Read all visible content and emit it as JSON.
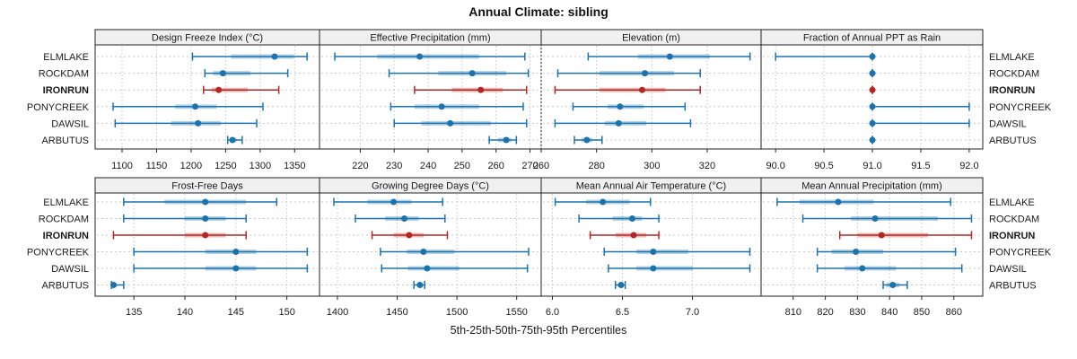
{
  "title": "Annual Climate: sibling",
  "caption": "5th-25th-50th-75th-95th Percentiles",
  "sites": [
    "ELMLAKE",
    "ROCKDAM",
    "IRONRUN",
    "PONYCREEK",
    "DAWSIL",
    "ARBUTUS"
  ],
  "highlight_site": "IRONRUN",
  "colors": {
    "series_blue": "#1b73ae",
    "series_red": "#b32622",
    "band_opacity": 0.32,
    "panel_header_bg": "#f0f0f0",
    "panel_border": "#222222",
    "gridline": "#d2d2d2",
    "row_guide": "#c9c9c9",
    "text": "#1a1a1a"
  },
  "chart_data": {
    "type": "table",
    "subtype": "trellis-percentile-range",
    "percentile_labels": [
      "5th",
      "25th",
      "50th",
      "75th",
      "95th"
    ],
    "panels": [
      {
        "title": "Design Freeze Index (°C)",
        "xlim": [
          1061,
          1386
        ],
        "ticks": [
          1100,
          1150,
          1200,
          1250,
          1300,
          1350
        ],
        "tick_labels": [
          "1100",
          "1150",
          "1200",
          "1250",
          "1300",
          "1350"
        ],
        "series": [
          {
            "site": "ELMLAKE",
            "values": [
              1202,
              1258,
              1321,
              1349,
              1368
            ]
          },
          {
            "site": "ROCKDAM",
            "values": [
              1220,
              1232,
              1246,
              1286,
              1340
            ]
          },
          {
            "site": "IRONRUN",
            "values": [
              1218,
              1230,
              1240,
              1282,
              1327
            ]
          },
          {
            "site": "PONYCREEK",
            "values": [
              1087,
              1177,
              1206,
              1237,
              1304
            ]
          },
          {
            "site": "DAWSIL",
            "values": [
              1090,
              1171,
              1210,
              1243,
              1295
            ]
          },
          {
            "site": "ARBUTUS",
            "values": [
              1253,
              1256,
              1260,
              1266,
              1274
            ]
          }
        ]
      },
      {
        "title": "Effective Precipitation (mm)",
        "xlim": [
          208,
          273.3
        ],
        "ticks": [
          220,
          230,
          240,
          250,
          260,
          270
        ],
        "tick_labels": [
          "220",
          "230",
          "240",
          "250",
          "260",
          "270"
        ],
        "series": [
          {
            "site": "ELMLAKE",
            "values": [
              212.5,
              225,
              237.5,
              255,
              268.5
            ]
          },
          {
            "site": "ROCKDAM",
            "values": [
              228.5,
              243,
              253,
              263,
              269.5
            ]
          },
          {
            "site": "IRONRUN",
            "values": [
              236,
              247,
              255.5,
              262,
              269
            ]
          },
          {
            "site": "PONYCREEK",
            "values": [
              229,
              236,
              244,
              255,
              268
            ]
          },
          {
            "site": "DAWSIL",
            "values": [
              230,
              238,
              246.5,
              258.5,
              269
            ]
          },
          {
            "site": "ARBUTUS",
            "values": [
              258,
              260.5,
              263,
              264.5,
              266
            ]
          }
        ]
      },
      {
        "title": "Elevation (m)",
        "xlim": [
          260,
          339.5
        ],
        "ticks": [
          260,
          280,
          300,
          320
        ],
        "tick_labels": [
          "260",
          "280",
          "300",
          "320"
        ],
        "series": [
          {
            "site": "ELMLAKE",
            "values": [
              277,
              295,
              306.5,
              321,
              335.5
            ]
          },
          {
            "site": "ROCKDAM",
            "values": [
              266,
              281,
              297.5,
              308,
              317.5
            ]
          },
          {
            "site": "IRONRUN",
            "values": [
              265,
              281,
              296.5,
              305,
              317.5
            ]
          },
          {
            "site": "PONYCREEK",
            "values": [
              271.5,
              284,
              288.5,
              297,
              312
            ]
          },
          {
            "site": "DAWSIL",
            "values": [
              265,
              283,
              288,
              298,
              314
            ]
          },
          {
            "site": "ARBUTUS",
            "values": [
              272,
              274.5,
              276.5,
              278.5,
              282
            ]
          }
        ]
      },
      {
        "title": "Fraction of Annual PPT as Rain",
        "xlim": [
          89.85,
          92.14
        ],
        "ticks": [
          90.0,
          90.5,
          91.0,
          91.5,
          92.0
        ],
        "tick_labels": [
          "90.0",
          "90.5",
          "91.0",
          "91.5",
          "92.0"
        ],
        "series": [
          {
            "site": "ELMLAKE",
            "values": [
              90,
              91,
              91,
              91,
              91
            ]
          },
          {
            "site": "ROCKDAM",
            "values": [
              91,
              91,
              91,
              91,
              91
            ]
          },
          {
            "site": "IRONRUN",
            "values": [
              91,
              91,
              91,
              91,
              91
            ]
          },
          {
            "site": "PONYCREEK",
            "values": [
              91,
              91,
              91,
              91,
              92
            ]
          },
          {
            "site": "DAWSIL",
            "values": [
              91,
              91,
              91,
              91,
              92
            ]
          },
          {
            "site": "ARBUTUS",
            "values": [
              91,
              91,
              91,
              91,
              91
            ]
          }
        ]
      },
      {
        "title": "Frost-Free Days",
        "xlim": [
          131.2,
          153.2
        ],
        "ticks": [
          135,
          140,
          145,
          150
        ],
        "tick_labels": [
          "135",
          "140",
          "145",
          "150"
        ],
        "series": [
          {
            "site": "ELMLAKE",
            "values": [
              134,
              138,
              142,
              146,
              149
            ]
          },
          {
            "site": "ROCKDAM",
            "values": [
              134,
              140,
              142,
              144,
              146
            ]
          },
          {
            "site": "IRONRUN",
            "values": [
              133,
              140,
              142,
              144,
              146
            ]
          },
          {
            "site": "PONYCREEK",
            "values": [
              135,
              142,
              145,
              147,
              152
            ]
          },
          {
            "site": "DAWSIL",
            "values": [
              135,
              142,
              145,
              147,
              152
            ]
          },
          {
            "site": "ARBUTUS",
            "values": [
              132.8,
              132.9,
              133,
              133.3,
              134
            ]
          }
        ]
      },
      {
        "title": "Growing Degree Days (°C)",
        "xlim": [
          1385,
          1570.5
        ],
        "ticks": [
          1400,
          1450,
          1500,
          1550
        ],
        "tick_labels": [
          "1400",
          "1450",
          "1500",
          "1550"
        ],
        "series": [
          {
            "site": "ELMLAKE",
            "values": [
              1397,
              1425,
              1447,
              1462,
              1488
            ]
          },
          {
            "site": "ROCKDAM",
            "values": [
              1415,
              1440,
              1456,
              1468,
              1490
            ]
          },
          {
            "site": "IRONRUN",
            "values": [
              1429,
              1447,
              1460,
              1472,
              1492
            ]
          },
          {
            "site": "PONYCREEK",
            "values": [
              1436,
              1458,
              1472,
              1498,
              1560
            ]
          },
          {
            "site": "DAWSIL",
            "values": [
              1437,
              1459,
              1475,
              1502,
              1559
            ]
          },
          {
            "site": "ARBUTUS",
            "values": [
              1464,
              1467,
              1469,
              1471,
              1473
            ]
          }
        ]
      },
      {
        "title": "Mean Annual Air Temperature (°C)",
        "xlim": [
          5.92,
          7.49
        ],
        "ticks": [
          6.0,
          6.5,
          7.0
        ],
        "tick_labels": [
          "6.0",
          "6.5",
          "7.0"
        ],
        "series": [
          {
            "site": "ELMLAKE",
            "values": [
              6.02,
              6.24,
              6.36,
              6.55,
              6.7
            ]
          },
          {
            "site": "ROCKDAM",
            "values": [
              6.19,
              6.43,
              6.57,
              6.64,
              6.76
            ]
          },
          {
            "site": "IRONRUN",
            "values": [
              6.27,
              6.45,
              6.58,
              6.67,
              6.76
            ]
          },
          {
            "site": "PONYCREEK",
            "values": [
              6.37,
              6.6,
              6.72,
              6.97,
              7.41
            ]
          },
          {
            "site": "DAWSIL",
            "values": [
              6.4,
              6.6,
              6.72,
              7.0,
              7.41
            ]
          },
          {
            "site": "ARBUTUS",
            "values": [
              6.45,
              6.47,
              6.49,
              6.51,
              6.52
            ]
          }
        ]
      },
      {
        "title": "Mean Annual Precipitation (mm)",
        "xlim": [
          800,
          869
        ],
        "ticks": [
          810,
          820,
          830,
          840,
          850,
          860
        ],
        "tick_labels": [
          "810",
          "820",
          "830",
          "840",
          "850",
          "860"
        ],
        "series": [
          {
            "site": "ELMLAKE",
            "values": [
              805,
              812,
              824,
              835,
              859
            ]
          },
          {
            "site": "ROCKDAM",
            "values": [
              813,
              828,
              835.5,
              855,
              865.5
            ]
          },
          {
            "site": "IRONRUN",
            "values": [
              824.5,
              830,
              837.5,
              852,
              865.5
            ]
          },
          {
            "site": "PONYCREEK",
            "values": [
              817.5,
              822,
              829.5,
              838,
              860.5
            ]
          },
          {
            "site": "DAWSIL",
            "values": [
              817.5,
              826,
              831.5,
              842,
              862.5
            ]
          },
          {
            "site": "ARBUTUS",
            "values": [
              838,
              839,
              841,
              843,
              845.5
            ]
          }
        ]
      }
    ]
  }
}
